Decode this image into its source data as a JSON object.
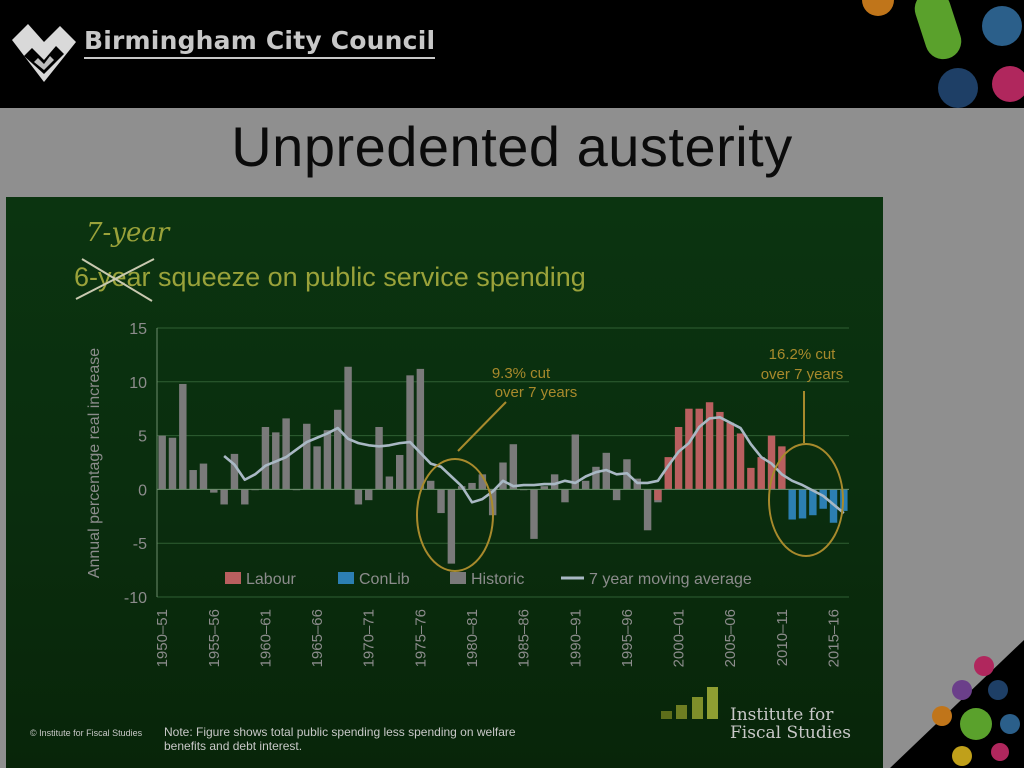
{
  "header": {
    "organization": "Birmingham City Council",
    "slide_title": "Unpredented austerity"
  },
  "colors": {
    "labour": "#b95f5f",
    "conlib": "#2c7fb2",
    "historic": "#7a7a7a",
    "moving_average": "#a9b8c4",
    "title_text": "#9aa23a",
    "annotation": "#a88a2c"
  },
  "chart_data": {
    "type": "bar",
    "title": "6-year squeeze on public service spending",
    "title_correction": "7-year",
    "ylabel": "Annual percentage real increase",
    "ylim": [
      -10,
      15
    ],
    "yticks": [
      15,
      10,
      5,
      0,
      -5,
      -10
    ],
    "grid": true,
    "legend_position": "bottom-inside",
    "x": [
      "1950–51",
      "1951–52",
      "1952–53",
      "1953–54",
      "1954–55",
      "1955–56",
      "1956–57",
      "1957–58",
      "1958–59",
      "1959–60",
      "1960–61",
      "1961–62",
      "1962–63",
      "1963–64",
      "1964–65",
      "1965–66",
      "1966–67",
      "1967–68",
      "1968–69",
      "1969–70",
      "1970–71",
      "1971–72",
      "1972–73",
      "1973–74",
      "1974–75",
      "1975–76",
      "1976–77",
      "1977–78",
      "1978–79",
      "1979–80",
      "1980–81",
      "1981–82",
      "1982–83",
      "1983–84",
      "1984–85",
      "1985–86",
      "1986–87",
      "1987–88",
      "1988–89",
      "1989–90",
      "1990–91",
      "1991–92",
      "1992–93",
      "1993–94",
      "1994–95",
      "1995–96",
      "1996–97",
      "1997–98",
      "1998–99",
      "1999–00",
      "2000–01",
      "2001–02",
      "2002–03",
      "2003–04",
      "2004–05",
      "2005–06",
      "2006–07",
      "2007–08",
      "2008–09",
      "2009–10",
      "2010–11",
      "2011–12",
      "2012–13",
      "2013–14",
      "2014–15",
      "2015–16",
      "2016–17"
    ],
    "x_tick_labels": [
      "1950–51",
      "1955–56",
      "1960–61",
      "1965–66",
      "1970–71",
      "1975–76",
      "1980–81",
      "1985–86",
      "1990–91",
      "1995–96",
      "2000–01",
      "2005–06",
      "2010–11",
      "2015–16"
    ],
    "series": [
      {
        "name": "Historic",
        "kind": "bar",
        "values": [
          5.0,
          4.8,
          9.8,
          1.8,
          2.4,
          -0.3,
          -1.4,
          3.3,
          -1.4,
          0.0,
          5.8,
          5.3,
          6.6,
          0.0,
          6.1,
          4.0,
          5.5,
          7.4,
          11.4,
          -1.4,
          -1.0,
          5.8,
          1.2,
          3.2,
          10.6,
          11.2,
          0.8,
          -2.2,
          -6.9,
          0.3,
          0.6,
          1.4,
          -2.4,
          2.5,
          4.2,
          0.0,
          -4.6,
          0.3,
          1.4,
          -1.2,
          5.1,
          0.8,
          2.1,
          3.4,
          -1.0,
          2.8,
          1.0,
          -3.8,
          -1.2,
          null,
          null,
          null,
          null,
          null,
          null,
          null,
          null,
          null,
          null,
          null,
          null,
          null,
          null,
          null,
          null,
          null,
          null
        ]
      },
      {
        "name": "Labour",
        "kind": "bar",
        "values": [
          null,
          null,
          null,
          null,
          null,
          null,
          null,
          null,
          null,
          null,
          null,
          null,
          null,
          null,
          null,
          null,
          null,
          null,
          null,
          null,
          null,
          null,
          null,
          null,
          null,
          null,
          null,
          null,
          null,
          null,
          null,
          null,
          null,
          null,
          null,
          null,
          null,
          null,
          null,
          null,
          null,
          null,
          null,
          null,
          null,
          null,
          null,
          null,
          -1.0,
          3.0,
          5.8,
          7.5,
          7.5,
          8.1,
          7.2,
          6.2,
          5.2,
          2.0,
          3.0,
          5.0,
          4.0,
          null,
          null,
          null,
          null,
          null,
          null
        ]
      },
      {
        "name": "ConLib",
        "kind": "bar",
        "values": [
          null,
          null,
          null,
          null,
          null,
          null,
          null,
          null,
          null,
          null,
          null,
          null,
          null,
          null,
          null,
          null,
          null,
          null,
          null,
          null,
          null,
          null,
          null,
          null,
          null,
          null,
          null,
          null,
          null,
          null,
          null,
          null,
          null,
          null,
          null,
          null,
          null,
          null,
          null,
          null,
          null,
          null,
          null,
          null,
          null,
          null,
          null,
          null,
          null,
          null,
          null,
          null,
          null,
          null,
          null,
          null,
          null,
          null,
          null,
          null,
          null,
          -2.8,
          -2.7,
          -2.4,
          -1.8,
          -3.1,
          -2.0
        ]
      },
      {
        "name": "7 year moving average",
        "kind": "line",
        "values": [
          null,
          null,
          null,
          null,
          null,
          null,
          3.1,
          2.3,
          0.9,
          1.4,
          2.2,
          2.6,
          3.0,
          3.7,
          4.4,
          4.8,
          5.2,
          5.7,
          4.7,
          4.3,
          4.1,
          4.0,
          4.1,
          4.3,
          4.4,
          3.4,
          2.4,
          2.1,
          1.2,
          0.3,
          -1.2,
          -0.9,
          -0.2,
          0.8,
          0.3,
          0.4,
          0.4,
          0.5,
          0.5,
          0.8,
          0.6,
          1.2,
          1.6,
          1.8,
          1.4,
          1.5,
          0.6,
          0.6,
          0.8,
          2.2,
          3.5,
          4.3,
          5.8,
          6.6,
          6.7,
          6.2,
          5.7,
          4.2,
          3.0,
          2.4,
          1.4,
          0.8,
          0.4,
          -0.1,
          -0.6,
          -1.4,
          -2.2
        ]
      }
    ],
    "annotations": [
      {
        "text_lines": [
          "9.3% cut",
          "over 7 years"
        ]
      },
      {
        "text_lines": [
          "16.2% cut",
          "over 7 years"
        ]
      }
    ],
    "legend": [
      "Labour",
      "ConLib",
      "Historic",
      "7 year moving average"
    ]
  },
  "footer": {
    "copyright": "© Institute for Fiscal Studies",
    "note_line1": "Note: Figure shows total public spending less spending on welfare",
    "note_line2": "benefits and debt interest.",
    "ifs_line1": "Institute for",
    "ifs_line2": "Fiscal Studies"
  }
}
